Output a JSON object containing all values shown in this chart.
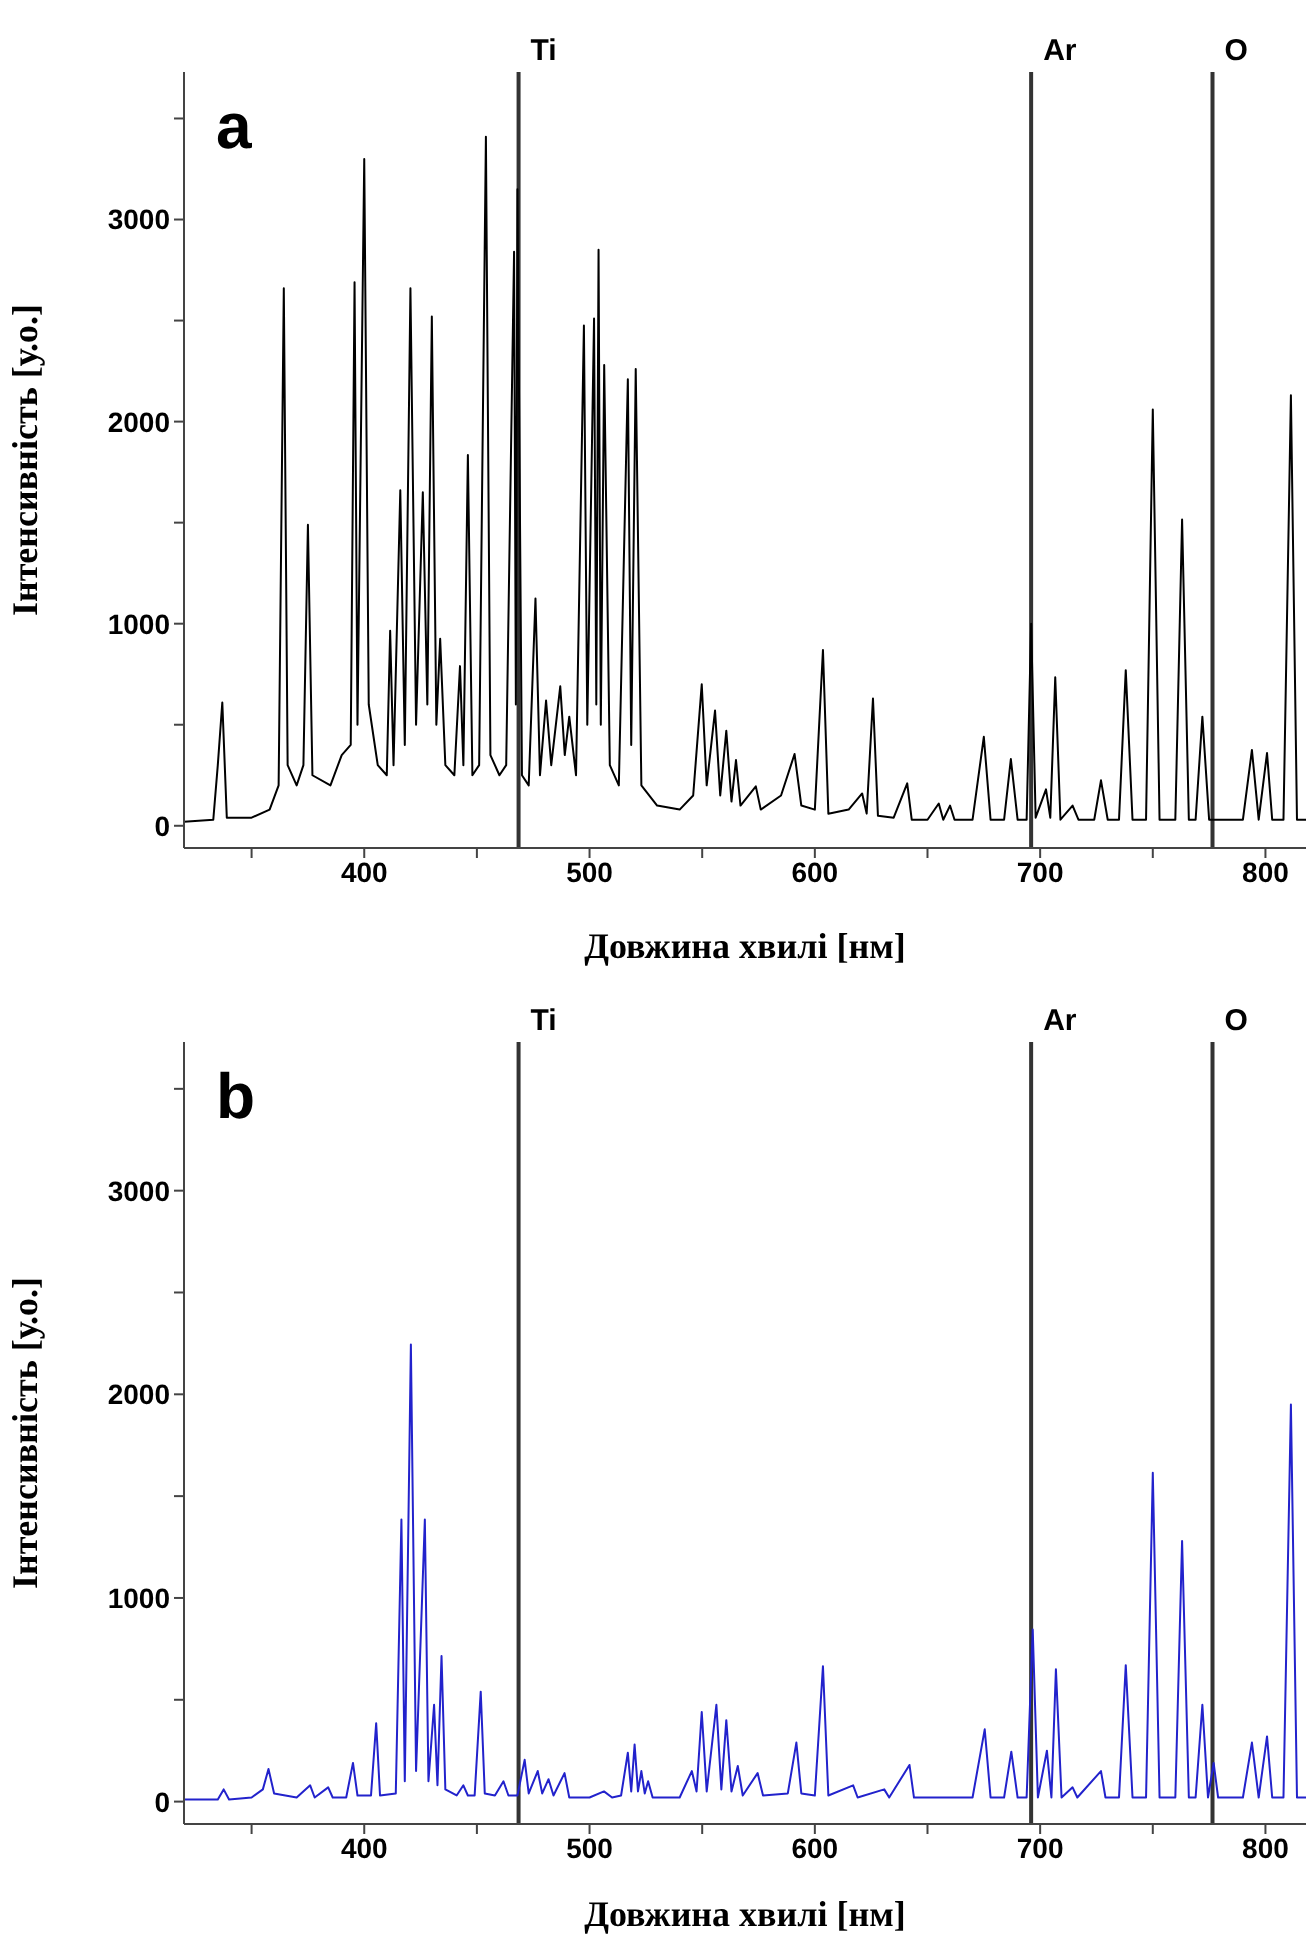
{
  "chart_data": [
    {
      "type": "line",
      "annotations": [
        "a"
      ],
      "xlabel": "Довжина хвилі [нм]",
      "ylabel": "Інтенсивність [у.о.]",
      "marker": "none",
      "xlim": [
        320,
        818
      ],
      "xticks": [
        {
          "value": 350,
          "label": null
        },
        400,
        {
          "value": 450,
          "label": null
        },
        500,
        {
          "value": 550,
          "label": null
        },
        600,
        {
          "value": 650,
          "label": null
        },
        700,
        {
          "value": 750,
          "label": null
        },
        800
      ],
      "ylim": [
        -110,
        3730
      ],
      "yticks": [
        0,
        {
          "value": 500,
          "label": null
        },
        1000,
        {
          "value": 1500,
          "label": null
        },
        2000,
        {
          "value": 2500,
          "label": null
        },
        3000,
        {
          "value": 3500,
          "label": null
        }
      ],
      "ref_lines": [
        {
          "axis": "x",
          "value": 468.5,
          "label": "Ti",
          "color": "#333333"
        },
        {
          "axis": "x",
          "value": 696,
          "label": "Ar",
          "color": "#333333"
        },
        {
          "axis": "x",
          "value": 776.5,
          "label": "O",
          "color": "#333333"
        }
      ],
      "series": [
        {
          "color": "#000000",
          "x": [
            320,
            333,
            335,
            337,
            339,
            350,
            358,
            362,
            364.3,
            366,
            370,
            373,
            375,
            377,
            385,
            390,
            394,
            395.7,
            397,
            400,
            402,
            406,
            410,
            411.5,
            413,
            416,
            418,
            420.5,
            423,
            426,
            428,
            430,
            432,
            433.7,
            436,
            440,
            442.5,
            444,
            446,
            448,
            451,
            454,
            456,
            460,
            463,
            466.5,
            467.3,
            468,
            470,
            473,
            476,
            478,
            480.7,
            483,
            487,
            489,
            491,
            494,
            497.5,
            499,
            502,
            503,
            504,
            505,
            506.5,
            509,
            513,
            517,
            518.5,
            520.5,
            523,
            530,
            540,
            546,
            549.8,
            552,
            555.7,
            558,
            560.7,
            563,
            565,
            567,
            573.8,
            576,
            585,
            591,
            594,
            600,
            603.6,
            606,
            615,
            621,
            623,
            625.8,
            628,
            635,
            641,
            643,
            650,
            655,
            657,
            660,
            662,
            670,
            675,
            678,
            684,
            687,
            690,
            694,
            696,
            698,
            702.6,
            704.5,
            706.7,
            709,
            714.4,
            717,
            724,
            727,
            730,
            735,
            738,
            741,
            747,
            750,
            753,
            760,
            763,
            766,
            769,
            772,
            775,
            790,
            794,
            797,
            800.7,
            803,
            808,
            811.3,
            814,
            818
          ],
          "values": [
            20,
            30,
            300,
            610,
            40,
            40,
            80,
            200,
            2660,
            300,
            200,
            300,
            1490,
            250,
            200,
            350,
            400,
            2690,
            500,
            3300,
            600,
            300,
            250,
            965,
            300,
            1660,
            400,
            2660,
            500,
            1650,
            600,
            2520,
            500,
            925,
            300,
            250,
            790,
            300,
            1835,
            250,
            300,
            3410,
            350,
            250,
            300,
            2840,
            600,
            3150,
            250,
            200,
            1125,
            250,
            620,
            300,
            690,
            350,
            540,
            250,
            2475,
            500,
            2510,
            600,
            2850,
            500,
            2280,
            300,
            200,
            2210,
            400,
            2260,
            200,
            100,
            80,
            150,
            700,
            200,
            570,
            150,
            470,
            120,
            325,
            100,
            195,
            80,
            150,
            355,
            100,
            80,
            870,
            60,
            80,
            160,
            60,
            630,
            50,
            40,
            210,
            30,
            30,
            110,
            30,
            100,
            30,
            30,
            440,
            30,
            30,
            330,
            30,
            30,
            1000,
            40,
            180,
            40,
            735,
            30,
            100,
            30,
            30,
            225,
            30,
            30,
            770,
            30,
            30,
            2060,
            30,
            30,
            1515,
            30,
            30,
            540,
            30,
            30,
            375,
            30,
            360,
            30,
            30,
            2130,
            30,
            30
          ]
        }
      ]
    },
    {
      "type": "line",
      "annotations": [
        "b"
      ],
      "xlabel": "Довжина хвилі [нм]",
      "ylabel": "Інтенсивність [у.о.]",
      "marker": "none",
      "xlim": [
        320,
        818
      ],
      "xticks": [
        {
          "value": 350,
          "label": null
        },
        400,
        {
          "value": 450,
          "label": null
        },
        500,
        {
          "value": 550,
          "label": null
        },
        600,
        {
          "value": 650,
          "label": null
        },
        700,
        {
          "value": 750,
          "label": null
        },
        800
      ],
      "ylim": [
        -110,
        3730
      ],
      "yticks": [
        0,
        {
          "value": 500,
          "label": null
        },
        1000,
        {
          "value": 1500,
          "label": null
        },
        2000,
        {
          "value": 2500,
          "label": null
        },
        3000,
        {
          "value": 3500,
          "label": null
        }
      ],
      "ref_lines": [
        {
          "axis": "x",
          "value": 468.5,
          "label": "Ti",
          "color": "#333333"
        },
        {
          "axis": "x",
          "value": 696,
          "label": "Ar",
          "color": "#333333"
        },
        {
          "axis": "x",
          "value": 776.5,
          "label": "O",
          "color": "#333333"
        }
      ],
      "series": [
        {
          "color": "#2222cc",
          "x": [
            320,
            335,
            337.6,
            340,
            350,
            355,
            357.5,
            360,
            370,
            376,
            378,
            384,
            386,
            392,
            395,
            397,
            403,
            405.3,
            407,
            414,
            416.5,
            418,
            420.7,
            423,
            426.9,
            428.5,
            431,
            432.5,
            434.3,
            436,
            441,
            444,
            446,
            449,
            451.7,
            453.5,
            458,
            461.8,
            464,
            468,
            471.2,
            473,
            477,
            479,
            481.8,
            484,
            488.9,
            491,
            500,
            506.4,
            510,
            514,
            517,
            518.5,
            520,
            521.5,
            523,
            524.5,
            526,
            528,
            540,
            545.4,
            547.5,
            549.8,
            552,
            556.3,
            558.5,
            560.7,
            563,
            565.8,
            568,
            574.6,
            577,
            588,
            591.8,
            594,
            600,
            603.6,
            606,
            617,
            619,
            630.8,
            633,
            642,
            644,
            670,
            675.4,
            678,
            684,
            687.2,
            690,
            694,
            696.7,
            699,
            703,
            705,
            707,
            709.5,
            714.4,
            716.5,
            727,
            729,
            735,
            738,
            741,
            747,
            750,
            753,
            760,
            763,
            766,
            769,
            772,
            774.5,
            777,
            779,
            790,
            794,
            797,
            800.7,
            803,
            808,
            811.3,
            814,
            818
          ],
          "values": [
            10,
            10,
            60,
            10,
            20,
            60,
            160,
            40,
            20,
            80,
            20,
            70,
            20,
            20,
            190,
            30,
            30,
            385,
            30,
            40,
            1385,
            100,
            2245,
            150,
            1385,
            100,
            475,
            80,
            715,
            60,
            30,
            80,
            30,
            30,
            540,
            40,
            30,
            100,
            30,
            30,
            205,
            40,
            150,
            40,
            110,
            30,
            140,
            20,
            20,
            50,
            20,
            30,
            240,
            50,
            280,
            50,
            150,
            40,
            100,
            20,
            20,
            150,
            50,
            440,
            50,
            475,
            60,
            400,
            50,
            175,
            30,
            140,
            30,
            40,
            290,
            40,
            30,
            665,
            30,
            80,
            20,
            60,
            20,
            180,
            20,
            20,
            355,
            20,
            20,
            245,
            20,
            20,
            845,
            20,
            250,
            20,
            650,
            20,
            70,
            20,
            150,
            20,
            20,
            670,
            20,
            20,
            1615,
            20,
            20,
            1280,
            20,
            20,
            475,
            20,
            190,
            20,
            20,
            290,
            20,
            320,
            20,
            20,
            1950,
            20,
            20
          ]
        }
      ]
    }
  ]
}
